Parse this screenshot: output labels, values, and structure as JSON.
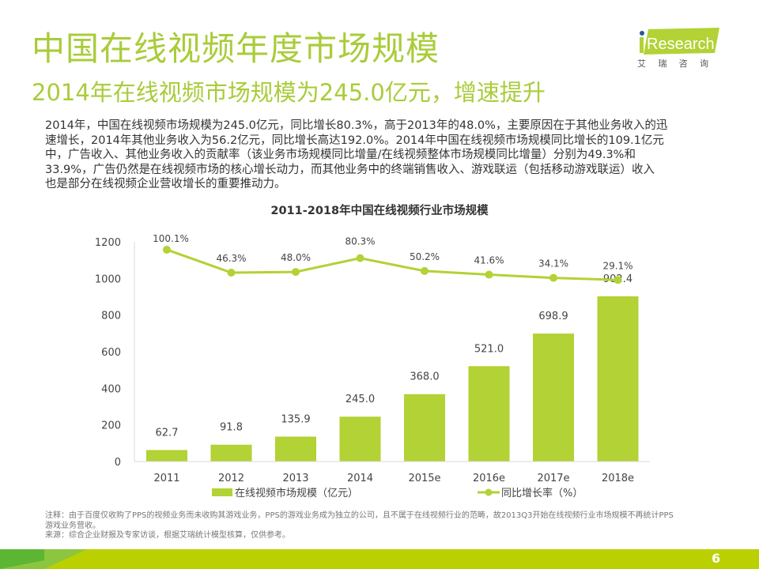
{
  "header": {
    "title": "中国在线视频年度市场规模",
    "subtitle": "2014年在线视频市场规模为245.0亿元，增速提升",
    "logo": {
      "text": "Research",
      "cn_chars": [
        "艾",
        "瑞",
        "咨",
        "询"
      ],
      "icon": "iresearch-logo-icon"
    }
  },
  "body": {
    "lines": [
      "2014年，中国在线视频市场规模为245.0亿元，同比增长80.3%，高于2013年的48.0%，主要原因在于其他业务收入的迅",
      "速增长，2014年其他业务收入为56.2亿元，同比增长高达192.0%。2014年中国在线视频市场规模同比增长的109.1亿元",
      "中，广告收入、其他业务收入的贡献率（该业务市场规模同比增量/在线视频整体市场规模同比增量）分别为49.3%和",
      "33.9%，广告仍然是在线视频市场的核心增长动力，而其他业务中的终端销售收入、游戏联运（包括移动游戏联运）收入",
      "也是部分在线视频企业营收增长的重要推动力。"
    ]
  },
  "chart_data": {
    "type": "bar",
    "title": "2011-2018年中国在线视频行业市场规模",
    "categories": [
      "2011",
      "2012",
      "2013",
      "2014",
      "2015e",
      "2016e",
      "2017e",
      "2018e"
    ],
    "series": [
      {
        "name": "在线视频市场规模（亿元）",
        "type": "bar",
        "axis": "left",
        "values": [
          62.7,
          91.8,
          135.9,
          245.0,
          368.0,
          521.0,
          698.9,
          902.4
        ],
        "labels": [
          "62.7",
          "91.8",
          "135.9",
          "245.0",
          "368.0",
          "521.0",
          "698.9",
          "902.4"
        ]
      },
      {
        "name": "同比增长率（%）",
        "type": "line",
        "axis": "right-hidden",
        "values": [
          100.1,
          46.3,
          48.0,
          80.3,
          50.2,
          41.6,
          34.1,
          29.1
        ],
        "labels": [
          "100.1%",
          "46.3%",
          "48.0%",
          "80.3%",
          "50.2%",
          "41.6%",
          "34.1%",
          "29.1%"
        ]
      }
    ],
    "yticks": [
      0,
      200,
      400,
      600,
      800,
      1000,
      1200
    ],
    "ylim": [
      0,
      1200
    ],
    "xlabel": "",
    "ylabel": "",
    "grid": false,
    "legend": "bottom",
    "colors": {
      "bar": "#b2d235",
      "line": "#b2d235"
    }
  },
  "notes": {
    "note_lines": [
      "注释：由于百度仅收购了PPS的视频业务而未收购其游戏业务，PPS的游戏业务成为独立的公司，且不属于在线视频行业的范畴，故2013Q3开始在线视频行业市场规模不再统计PPS",
      "游戏业务营收。"
    ],
    "source": "来源：综合企业财报及专家访谈，根据艾瑞统计模型核算，仅供参考。"
  },
  "footer": {
    "page_number": "6",
    "colors": {
      "band": "#bbd000",
      "left_block": "#5db534",
      "wedge": "#8cc63f"
    }
  }
}
